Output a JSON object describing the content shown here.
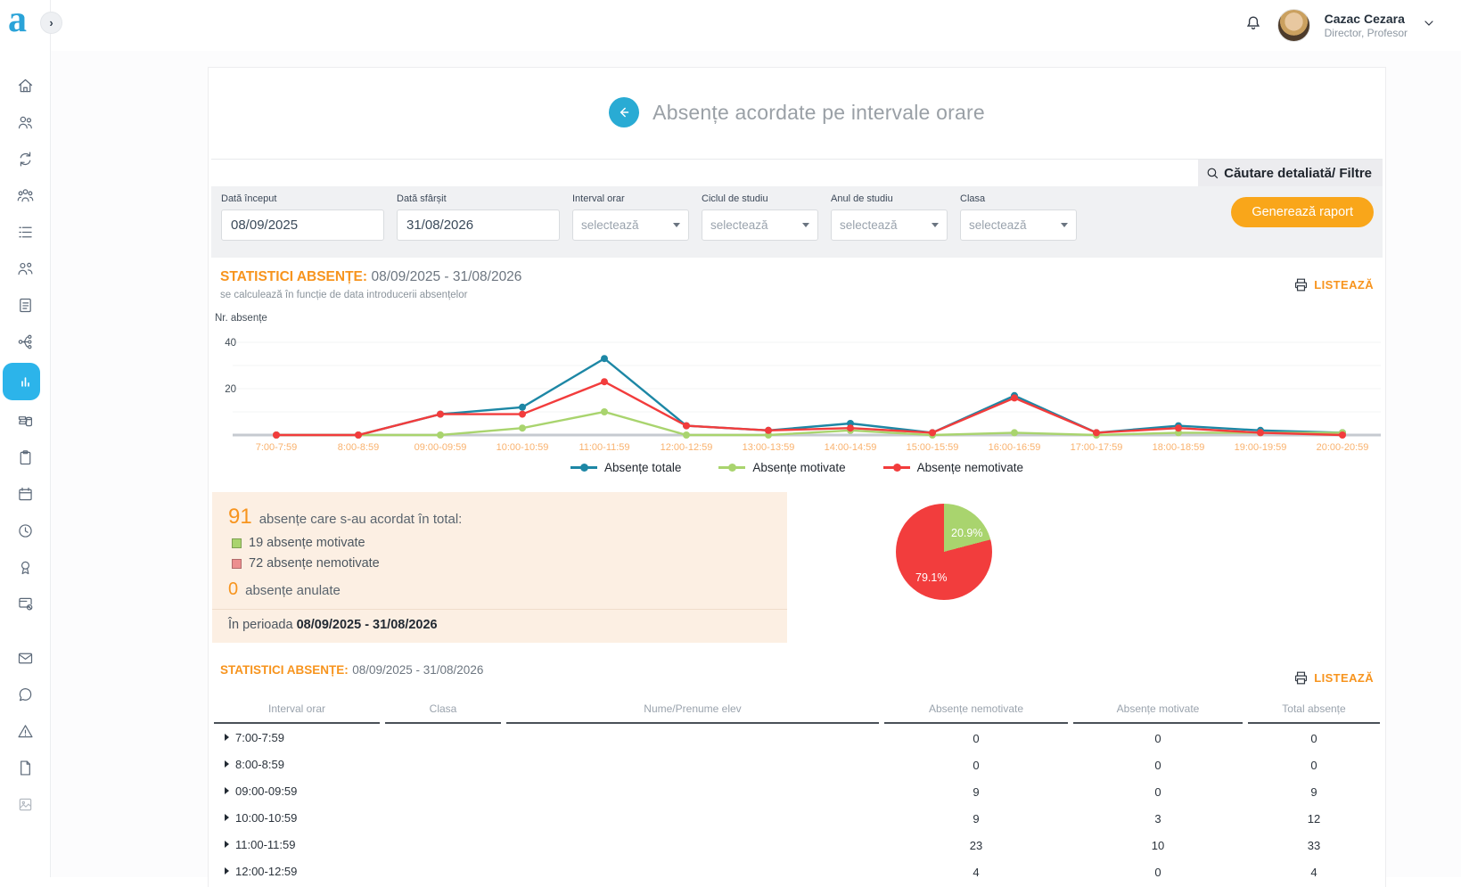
{
  "app": {
    "logo_letter": "a"
  },
  "topbar": {
    "user_name": "Cazac Cezara",
    "user_role": "Director, Profesor"
  },
  "sidebar": {
    "active_item": "reports",
    "items": [
      "home-icon",
      "students-icon",
      "transfers-icon",
      "teachers-icon",
      "list-icon",
      "class-icon",
      "documents-icon",
      "structure-icon",
      "bar-chart-icon",
      "library-icon",
      "clipboard-icon",
      "calendar-icon",
      "clock-icon",
      "award-icon",
      "card-blocked-icon",
      "mail-icon",
      "chat-icon",
      "warning-icon",
      "file-icon",
      "image-icon"
    ]
  },
  "page": {
    "title": "Absențe acordate pe intervale orare",
    "search_filter_label": "Căutare detaliată/ Filtre",
    "filters": {
      "fields": [
        {
          "label": "Dată început",
          "value": "08/09/2025"
        },
        {
          "label": "Dată sfârșit",
          "value": "31/08/2026"
        },
        {
          "label": "Interval orar",
          "value": "selectează"
        },
        {
          "label": "Ciclul de studiu",
          "value": "selectează"
        },
        {
          "label": "Anul de studiu",
          "value": "selectează"
        },
        {
          "label": "Clasa",
          "value": "selectează"
        }
      ],
      "submit_label": "Generează raport"
    },
    "stats_header": {
      "label": "STATISTICI ABSENȚE:",
      "period": "08/09/2025 - 31/08/2026",
      "note": "se calculează în funcție de data introducerii absențelor"
    },
    "print_label": "LISTEAZĂ",
    "summary": {
      "total_count": "91",
      "total_label": "absențe care s-au acordat în total:",
      "items": [
        {
          "count": "19",
          "label": "absențe motivate",
          "color": "#a9d46e"
        },
        {
          "count": "72",
          "label": "absențe nemotivate",
          "color": "#ec8f8f"
        }
      ],
      "cancelled_count": "0",
      "cancelled_label": "absențe anulate",
      "period_prefix": "În perioada",
      "period": "08/09/2025 - 31/08/2026"
    },
    "table": {
      "headers": [
        "Interval orar",
        "Clasa",
        "Nume/Prenume elev",
        "Absențe nemotivate",
        "Absențe motivate",
        "Total absențe"
      ],
      "rows": [
        {
          "interval": "7:00-7:59",
          "clasa": "",
          "elev": "",
          "nemotivate": "0",
          "motivate": "0",
          "total": "0"
        },
        {
          "interval": "8:00-8:59",
          "clasa": "",
          "elev": "",
          "nemotivate": "0",
          "motivate": "0",
          "total": "0"
        },
        {
          "interval": "09:00-09:59",
          "clasa": "",
          "elev": "",
          "nemotivate": "9",
          "motivate": "0",
          "total": "9"
        },
        {
          "interval": "10:00-10:59",
          "clasa": "",
          "elev": "",
          "nemotivate": "9",
          "motivate": "3",
          "total": "12"
        },
        {
          "interval": "11:00-11:59",
          "clasa": "",
          "elev": "",
          "nemotivate": "23",
          "motivate": "10",
          "total": "33"
        },
        {
          "interval": "12:00-12:59",
          "clasa": "",
          "elev": "",
          "nemotivate": "4",
          "motivate": "0",
          "total": "4"
        }
      ]
    }
  },
  "chart_data": [
    {
      "type": "line",
      "ylabel": "Nr. absențe",
      "categories": [
        "7:00-7:59",
        "8:00-8:59",
        "09:00-09:59",
        "10:00-10:59",
        "11:00-11:59",
        "12:00-12:59",
        "13:00-13:59",
        "14:00-14:59",
        "15:00-15:59",
        "16:00-16:59",
        "17:00-17:59",
        "18:00-18:59",
        "19:00-19:59",
        "20:00-20:59"
      ],
      "series": [
        {
          "name": "Absențe totale",
          "color": "#1d87a5",
          "values": [
            0,
            0,
            9,
            12,
            33,
            4,
            2,
            5,
            1,
            17,
            1,
            4,
            2,
            1
          ]
        },
        {
          "name": "Absențe motivate",
          "color": "#a9d46e",
          "values": [
            0,
            0,
            0,
            3,
            10,
            0,
            0,
            2,
            0,
            1,
            0,
            1,
            1,
            1
          ]
        },
        {
          "name": "Absențe nemotivate",
          "color": "#f23c3c",
          "values": [
            0,
            0,
            9,
            9,
            23,
            4,
            2,
            3,
            1,
            16,
            1,
            3,
            1,
            0
          ]
        }
      ],
      "ylim": [
        0,
        40
      ],
      "yticks": [
        0,
        20,
        40
      ],
      "grid": true,
      "legend_position": "bottom",
      "xtick_color": "#f9b26e"
    },
    {
      "type": "pie",
      "slices": [
        {
          "label": "Absențe motivate",
          "value": 20.9,
          "display": "20.9%",
          "color": "#a9d46e"
        },
        {
          "label": "Absențe nemotivate",
          "value": 79.1,
          "display": "79.1%",
          "color": "#f23d3d"
        }
      ]
    }
  ]
}
